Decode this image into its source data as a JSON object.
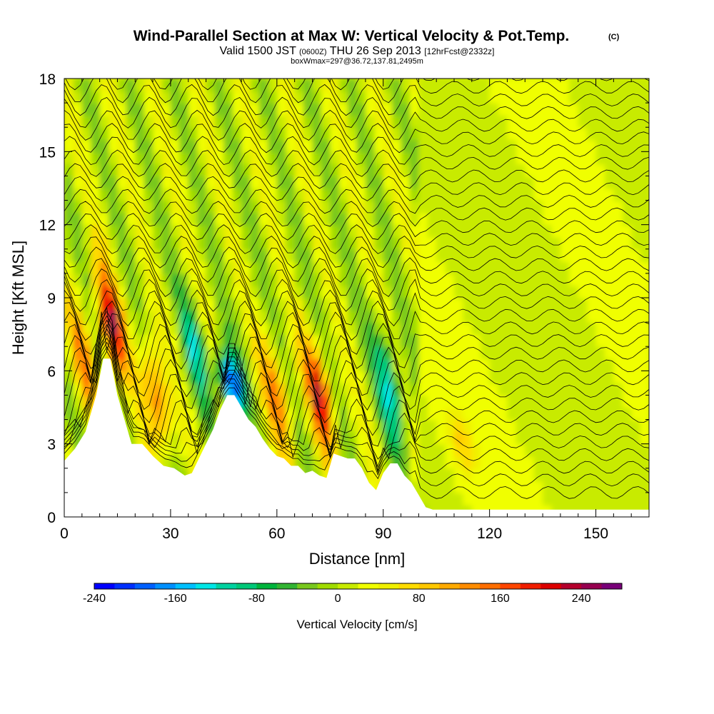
{
  "chart_data": {
    "type": "heatmap",
    "title": "Wind-Parallel Section at Max W: Vertical Velocity & Pot.Temp.",
    "title_mark": "(C)",
    "subtitle": {
      "valid": "Valid 1500 JST",
      "utc": "(0600Z)",
      "date": "THU 26 Sep 2013",
      "forecast": "[12hrFcst@2332z]",
      "box": "boxWmax=297@36.72,137.81,2495m"
    },
    "xlabel": "Distance [nm]",
    "ylabel": "Height [Kft MSL]",
    "xlim": [
      0,
      165
    ],
    "ylim": [
      0,
      18
    ],
    "xticks": [
      0,
      30,
      60,
      90,
      120,
      150
    ],
    "yticks": [
      0,
      3,
      6,
      9,
      12,
      15,
      18
    ],
    "colorbar": {
      "label": "Vertical Velocity [cm/s]",
      "range": [
        -240,
        280
      ],
      "step": 20,
      "tick_values": [
        -240,
        -160,
        -80,
        0,
        80,
        160,
        240
      ],
      "tick_labels": [
        "-240",
        "-160",
        "-80",
        "0",
        "80",
        "160",
        "240"
      ],
      "colors": [
        "#0000ff",
        "#0030ff",
        "#0060ff",
        "#0090ff",
        "#00c0ff",
        "#00e6e6",
        "#00d2a0",
        "#00c878",
        "#00b43c",
        "#32b432",
        "#78c81e",
        "#a0dc00",
        "#c8eb00",
        "#f0ff00",
        "#f0f000",
        "#ffdc00",
        "#ffc800",
        "#ffaa00",
        "#ff8c00",
        "#ff6e00",
        "#ff4600",
        "#f01e00",
        "#dc0000",
        "#b4002d",
        "#960050",
        "#780078"
      ]
    },
    "terrain_kft": [
      [
        0,
        2.3
      ],
      [
        3,
        2.8
      ],
      [
        6,
        3.5
      ],
      [
        9,
        5
      ],
      [
        11,
        6.5
      ],
      [
        13,
        6.5
      ],
      [
        15,
        5
      ],
      [
        17,
        4
      ],
      [
        19,
        3
      ],
      [
        22,
        3
      ],
      [
        25,
        2.5
      ],
      [
        28,
        2.1
      ],
      [
        31,
        2
      ],
      [
        34,
        1.7
      ],
      [
        36,
        1.8
      ],
      [
        38,
        2.4
      ],
      [
        40,
        3
      ],
      [
        42,
        3.6
      ],
      [
        44,
        4.4
      ],
      [
        46,
        5
      ],
      [
        48,
        5
      ],
      [
        50,
        4.5
      ],
      [
        52,
        4
      ],
      [
        54,
        3.7
      ],
      [
        56,
        3.2
      ],
      [
        58,
        2.8
      ],
      [
        60,
        2.5
      ],
      [
        62,
        2.4
      ],
      [
        64,
        2.1
      ],
      [
        66,
        2.1
      ],
      [
        68,
        1.8
      ],
      [
        70,
        1.9
      ],
      [
        72,
        1.7
      ],
      [
        74,
        1.6
      ],
      [
        76,
        2.6
      ],
      [
        78,
        2.5
      ],
      [
        80,
        2.4
      ],
      [
        82,
        2.4
      ],
      [
        84,
        2
      ],
      [
        86,
        1.4
      ],
      [
        88,
        1.1
      ],
      [
        90,
        1.8
      ],
      [
        92,
        2.2
      ],
      [
        94,
        2.2
      ],
      [
        96,
        1.7
      ],
      [
        98,
        1.4
      ],
      [
        100,
        0.9
      ],
      [
        102,
        0.4
      ],
      [
        104,
        0.3
      ],
      [
        107,
        0.3
      ],
      [
        110,
        0.3
      ],
      [
        165,
        0.3
      ]
    ],
    "updraft_cores": [
      {
        "x": 5,
        "z0": 5.5,
        "z1": 7.5,
        "w": 100
      },
      {
        "x": 13,
        "z0": 7,
        "z1": 9,
        "w": 220
      },
      {
        "x": 26,
        "z0": 4,
        "z1": 6,
        "w": 160
      },
      {
        "x": 60,
        "z0": 4,
        "z1": 6,
        "w": 120
      },
      {
        "x": 72,
        "z0": 4,
        "z1": 6,
        "w": 200
      },
      {
        "x": 112,
        "z0": 2.5,
        "z1": 3.5,
        "w": 60
      }
    ],
    "downdraft_cores": [
      {
        "x": 37,
        "z0": 6,
        "z1": 8,
        "w": -100
      },
      {
        "x": 47,
        "z0": 5,
        "z1": 6,
        "w": -220
      },
      {
        "x": 92,
        "z0": 4,
        "z1": 6.5,
        "w": -140
      }
    ]
  }
}
